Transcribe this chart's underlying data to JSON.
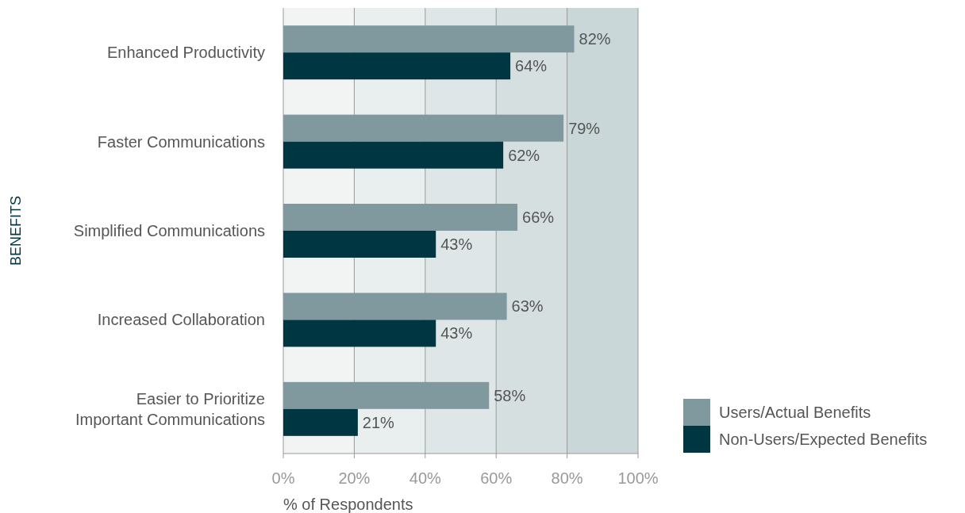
{
  "chart_data": {
    "type": "bar",
    "orientation": "horizontal",
    "ylabel": "BENEFITS",
    "xlabel": "% of Respondents",
    "categories": [
      "Enhanced Productivity",
      "Faster Communications",
      "Simplified Communications",
      "Increased Collaboration",
      "Easier to Prioritize\nImportant Communications"
    ],
    "series": [
      {
        "name": "Users/Actual Benefits",
        "color": "#7f999e",
        "values": [
          82,
          79,
          66,
          63,
          58
        ],
        "value_labels": [
          "82%",
          "79%",
          "66%",
          "63%",
          "58%"
        ]
      },
      {
        "name": "Non-Users/Expected Benefits",
        "color": "#003641",
        "values": [
          64,
          62,
          43,
          43,
          21
        ],
        "value_labels": [
          "64%",
          "62%",
          "43%",
          "43%",
          "21%"
        ]
      }
    ],
    "xlim": [
      0,
      100
    ],
    "xticks": [
      {
        "value": 0,
        "label": "0%"
      },
      {
        "value": 20,
        "label": "20%"
      },
      {
        "value": 40,
        "label": "40%"
      },
      {
        "value": 60,
        "label": "60%"
      },
      {
        "value": 80,
        "label": "80%"
      },
      {
        "value": 100,
        "label": "100%"
      }
    ],
    "bands": [
      {
        "axis": "x",
        "from": 0,
        "to": 20,
        "color": "#f2f4f4"
      },
      {
        "axis": "x",
        "from": 20,
        "to": 40,
        "color": "#e9eeee"
      },
      {
        "axis": "x",
        "from": 40,
        "to": 60,
        "color": "#dfe6e7"
      },
      {
        "axis": "x",
        "from": 60,
        "to": 80,
        "color": "#d5dfe0"
      },
      {
        "axis": "x",
        "from": 80,
        "to": 100,
        "color": "#c9d7d9"
      }
    ],
    "grid": "x",
    "legend": "bottom right"
  }
}
